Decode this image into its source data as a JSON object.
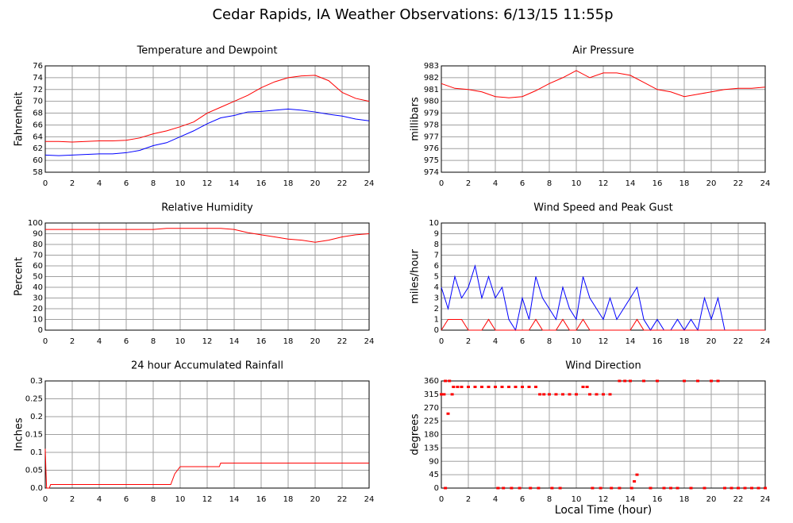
{
  "title": "Cedar Rapids, IA Weather Observations: 6/13/15 11:55p",
  "xlabel": "Local Time (hour)",
  "chart_data": [
    {
      "type": "line",
      "title": "Temperature and Dewpoint",
      "ylabel": "Fahrenheit",
      "x": [
        0,
        1,
        2,
        3,
        4,
        5,
        6,
        7,
        8,
        9,
        10,
        11,
        12,
        13,
        14,
        15,
        16,
        17,
        18,
        19,
        20,
        21,
        22,
        23,
        24
      ],
      "series": [
        {
          "color": "#ff0000",
          "values": [
            63.2,
            63.2,
            63.1,
            63.2,
            63.3,
            63.3,
            63.4,
            63.8,
            64.5,
            65.0,
            65.7,
            66.5,
            68.0,
            69.0,
            70.0,
            71.0,
            72.3,
            73.3,
            74.0,
            74.3,
            74.4,
            73.5,
            71.5,
            70.5,
            70.0
          ]
        },
        {
          "color": "#0000ff",
          "values": [
            60.9,
            60.8,
            60.9,
            61.0,
            61.1,
            61.1,
            61.3,
            61.7,
            62.5,
            63.0,
            64.0,
            65.0,
            66.2,
            67.2,
            67.6,
            68.2,
            68.3,
            68.5,
            68.7,
            68.5,
            68.2,
            67.8,
            67.5,
            67.0,
            66.7
          ]
        }
      ],
      "xlim": [
        0,
        24
      ],
      "xticks": [
        0,
        2,
        4,
        6,
        8,
        10,
        12,
        14,
        16,
        18,
        20,
        22,
        24
      ],
      "ylim": [
        58,
        76
      ],
      "yticks": [
        58,
        60,
        62,
        64,
        66,
        68,
        70,
        72,
        74,
        76
      ],
      "grid": true
    },
    {
      "type": "line",
      "title": "Air Pressure",
      "ylabel": "millibars",
      "x": [
        0,
        1,
        2,
        3,
        4,
        5,
        6,
        7,
        8,
        9,
        10,
        11,
        12,
        13,
        14,
        15,
        16,
        17,
        18,
        19,
        20,
        21,
        22,
        23,
        24
      ],
      "series": [
        {
          "color": "#ff0000",
          "values": [
            981.5,
            981.1,
            981.0,
            980.8,
            980.4,
            980.3,
            980.4,
            980.9,
            981.5,
            982.0,
            982.6,
            982.0,
            982.4,
            982.4,
            982.2,
            981.6,
            981.0,
            980.8,
            980.4,
            980.6,
            980.8,
            981.0,
            981.1,
            981.1,
            981.2
          ]
        }
      ],
      "xlim": [
        0,
        24
      ],
      "xticks": [
        0,
        2,
        4,
        6,
        8,
        10,
        12,
        14,
        16,
        18,
        20,
        22,
        24
      ],
      "ylim": [
        974,
        983
      ],
      "yticks": [
        974,
        975,
        976,
        977,
        978,
        979,
        980,
        981,
        982,
        983
      ],
      "grid": true
    },
    {
      "type": "line",
      "title": "Relative Humidity",
      "ylabel": "Percent",
      "x": [
        0,
        1,
        2,
        3,
        4,
        5,
        6,
        7,
        8,
        9,
        10,
        11,
        12,
        13,
        14,
        15,
        16,
        17,
        18,
        19,
        20,
        21,
        22,
        23,
        24
      ],
      "series": [
        {
          "color": "#ff0000",
          "values": [
            94,
            94,
            94,
            94,
            94,
            94,
            94,
            94,
            94,
            95,
            95,
            95,
            95,
            95,
            94,
            91,
            89,
            87,
            85,
            84,
            82,
            84,
            87,
            89,
            90
          ]
        }
      ],
      "xlim": [
        0,
        24
      ],
      "xticks": [
        0,
        2,
        4,
        6,
        8,
        10,
        12,
        14,
        16,
        18,
        20,
        22,
        24
      ],
      "ylim": [
        0,
        100
      ],
      "yticks": [
        0,
        10,
        20,
        30,
        40,
        50,
        60,
        70,
        80,
        90,
        100
      ],
      "grid": true
    },
    {
      "type": "line",
      "title": "Wind Speed and Peak Gust",
      "ylabel": "miles/hour",
      "x": [
        0,
        0.5,
        1,
        1.5,
        2,
        2.5,
        3,
        3.5,
        4,
        4.5,
        5,
        5.5,
        6,
        6.5,
        7,
        7.5,
        8,
        8.5,
        9,
        9.5,
        10,
        10.5,
        11,
        11.5,
        12,
        12.5,
        13,
        13.5,
        14,
        14.5,
        15,
        15.5,
        16,
        16.5,
        17,
        17.5,
        18,
        18.5,
        19,
        19.5,
        20,
        20.5,
        21,
        21.5,
        22,
        22.5,
        23,
        23.5,
        24
      ],
      "series": [
        {
          "color": "#0000ff",
          "values": [
            4,
            2,
            5,
            3,
            4,
            6,
            3,
            5,
            3,
            4,
            1,
            0,
            3,
            1,
            5,
            3,
            2,
            1,
            4,
            2,
            1,
            5,
            3,
            2,
            1,
            3,
            1,
            2,
            3,
            4,
            1,
            0,
            1,
            0,
            0,
            1,
            0,
            1,
            0,
            3,
            1,
            3,
            0,
            0,
            0,
            0,
            0,
            0,
            0
          ]
        },
        {
          "color": "#ff0000",
          "values": [
            0,
            1,
            1,
            1,
            0,
            0,
            0,
            1,
            0,
            0,
            0,
            0,
            0,
            0,
            1,
            0,
            0,
            0,
            1,
            0,
            0,
            1,
            0,
            0,
            0,
            0,
            0,
            0,
            0,
            1,
            0,
            0,
            0,
            0,
            0,
            0,
            0,
            0,
            0,
            0,
            0,
            0,
            0,
            0,
            0,
            0,
            0,
            0,
            0
          ]
        }
      ],
      "xlim": [
        0,
        24
      ],
      "xticks": [
        0,
        2,
        4,
        6,
        8,
        10,
        12,
        14,
        16,
        18,
        20,
        22,
        24
      ],
      "ylim": [
        0,
        10
      ],
      "yticks": [
        0,
        1,
        2,
        3,
        4,
        5,
        6,
        7,
        8,
        9,
        10
      ],
      "grid": true
    },
    {
      "type": "line",
      "title": "24 hour Accumulated Rainfall",
      "ylabel": "Inches",
      "x": [
        0,
        0.05,
        0.1,
        0.3,
        0.4,
        9.3,
        9.6,
        10,
        12.9,
        13,
        24
      ],
      "series": [
        {
          "color": "#ff0000",
          "values": [
            0.11,
            0.05,
            0,
            0,
            0.01,
            0.01,
            0.04,
            0.06,
            0.06,
            0.07,
            0.07
          ]
        }
      ],
      "xlim": [
        0,
        24
      ],
      "xticks": [
        0,
        2,
        4,
        6,
        8,
        10,
        12,
        14,
        16,
        18,
        20,
        22,
        24
      ],
      "ylim": [
        0,
        0.3
      ],
      "yticks": [
        {
          "value": 0,
          "label": "0.0"
        },
        0.05,
        0.1,
        0.15,
        0.2,
        0.25,
        0.3
      ],
      "grid": true
    },
    {
      "type": "scatter",
      "title": "Wind Direction",
      "ylabel": "degrees",
      "x": [
        0,
        0.2,
        0.3,
        0.5,
        0.6,
        0.8,
        0.9,
        1.2,
        1.5,
        2,
        2.5,
        3,
        3.5,
        4,
        4.2,
        4.5,
        5,
        5.5,
        6,
        6.5,
        7,
        7.3,
        7.6,
        8,
        8.5,
        9,
        9.5,
        10,
        10.5,
        10.8,
        11,
        11.5,
        12,
        12.5,
        13.2,
        13.6,
        14,
        14.3,
        14.5,
        15,
        15.5,
        16,
        16.5,
        17,
        17.5,
        18,
        18.5,
        19,
        19.5,
        20,
        20.5,
        21,
        21.5,
        22,
        22.5,
        23,
        23.5,
        24,
        0.3,
        4.2,
        4.6,
        5.2,
        5.8,
        6.6,
        7.2,
        8.2,
        8.8,
        11.2,
        11.8,
        12.6,
        13.2,
        14.1
      ],
      "series": [
        {
          "color": "#ff0000",
          "values": [
            315,
            315,
            360,
            250,
            360,
            315,
            340,
            340,
            340,
            340,
            340,
            340,
            340,
            340,
            0,
            340,
            340,
            340,
            340,
            340,
            340,
            315,
            315,
            315,
            315,
            315,
            315,
            315,
            340,
            340,
            315,
            315,
            315,
            315,
            360,
            360,
            360,
            22.5,
            45,
            360,
            0,
            360,
            0,
            0,
            0,
            360,
            0,
            360,
            0,
            360,
            360,
            0,
            0,
            0,
            0,
            0,
            0,
            0,
            0,
            0,
            0,
            0,
            0,
            0,
            0,
            0,
            0,
            0,
            0,
            0,
            0,
            0
          ]
        }
      ],
      "xlim": [
        0,
        24
      ],
      "xticks": [
        0,
        2,
        4,
        6,
        8,
        10,
        12,
        14,
        16,
        18,
        20,
        22,
        24
      ],
      "ylim": [
        0,
        360
      ],
      "yticks": [
        0,
        45,
        90,
        135,
        180,
        225,
        270,
        315,
        360
      ],
      "grid": true
    }
  ]
}
